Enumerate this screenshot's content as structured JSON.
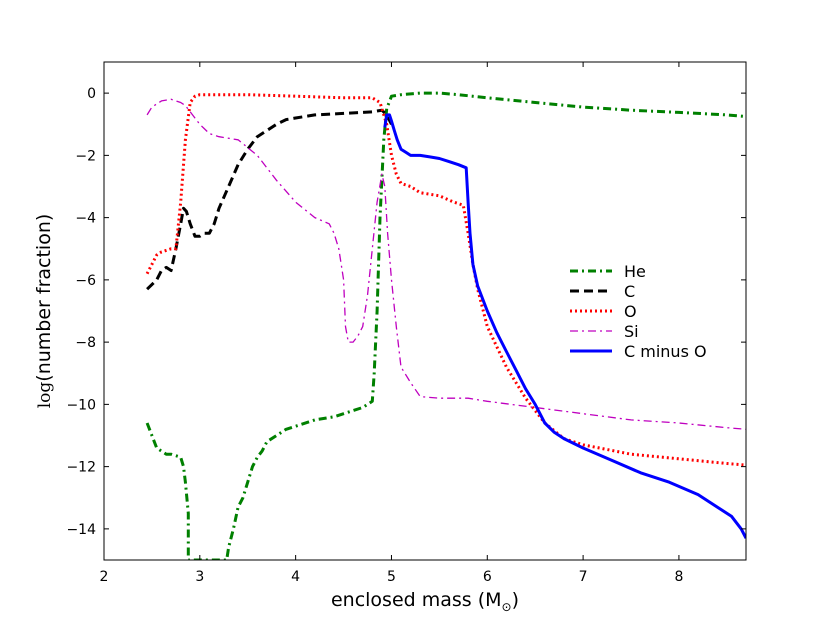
{
  "chart_data": {
    "type": "line",
    "title": "",
    "xlabel": "enclosed mass (M",
    "xlabel_sub": "⊙",
    "xlabel_close": ")",
    "ylabel_log": "log",
    "ylabel_rest": "(number fraction)",
    "xlim": [
      2,
      8.7
    ],
    "ylim": [
      -15,
      1
    ],
    "xticks": [
      2,
      3,
      4,
      5,
      6,
      7,
      8
    ],
    "xtick_labels": [
      "2",
      "3",
      "4",
      "5",
      "6",
      "7",
      "8"
    ],
    "yticks": [
      0,
      -2,
      -4,
      -6,
      -8,
      -10,
      -12,
      -14
    ],
    "ytick_labels": [
      "0",
      "−2",
      "−4",
      "−6",
      "−8",
      "−10",
      "−12",
      "−14"
    ],
    "grid": false,
    "legend_position": "right",
    "series": [
      {
        "name": "He",
        "color": "#008000",
        "style": "dashdot",
        "x": [
          2.45,
          2.5,
          2.55,
          2.6,
          2.65,
          2.7,
          2.75,
          2.8,
          2.83,
          2.85,
          2.88,
          2.88,
          3.28,
          3.3,
          3.35,
          3.4,
          3.45,
          3.5,
          3.55,
          3.6,
          3.65,
          3.7,
          3.8,
          3.9,
          4.0,
          4.2,
          4.4,
          4.6,
          4.7,
          4.75,
          4.8,
          4.82,
          4.85,
          4.88,
          4.92,
          4.95,
          5.0,
          5.1,
          5.3,
          5.5,
          5.7,
          6.0,
          6.5,
          7.0,
          7.5,
          8.0,
          8.5,
          8.7
        ],
        "y": [
          -10.6,
          -11.0,
          -11.4,
          -11.5,
          -11.6,
          -11.6,
          -11.65,
          -11.7,
          -12.0,
          -12.5,
          -13.5,
          -15.0,
          -15.0,
          -14.6,
          -14.0,
          -13.3,
          -13.0,
          -12.5,
          -12.0,
          -11.7,
          -11.5,
          -11.2,
          -11.0,
          -10.8,
          -10.7,
          -10.5,
          -10.4,
          -10.2,
          -10.1,
          -10.0,
          -9.9,
          -9.0,
          -7.0,
          -4.0,
          -1.5,
          -0.5,
          -0.1,
          -0.05,
          0.0,
          0.0,
          -0.05,
          -0.15,
          -0.3,
          -0.45,
          -0.55,
          -0.62,
          -0.7,
          -0.75
        ]
      },
      {
        "name": "C",
        "color": "#000000",
        "style": "dashed",
        "x": [
          2.45,
          2.55,
          2.6,
          2.65,
          2.7,
          2.75,
          2.8,
          2.83,
          2.86,
          2.9,
          2.95,
          3.0,
          3.05,
          3.1,
          3.15,
          3.2,
          3.3,
          3.4,
          3.5,
          3.6,
          3.7,
          3.8,
          3.9,
          4.0,
          4.2,
          4.5,
          4.8,
          4.9,
          4.95,
          5.0
        ],
        "y": [
          -6.3,
          -6.0,
          -5.7,
          -5.6,
          -5.7,
          -5.0,
          -4.2,
          -3.7,
          -3.8,
          -4.2,
          -4.6,
          -4.6,
          -4.5,
          -4.5,
          -4.2,
          -3.7,
          -3.0,
          -2.3,
          -1.8,
          -1.4,
          -1.2,
          -1.0,
          -0.85,
          -0.8,
          -0.7,
          -0.65,
          -0.6,
          -0.55,
          -0.7,
          -1.0
        ]
      },
      {
        "name": "O",
        "color": "#ff0000",
        "style": "dotted",
        "x": [
          2.45,
          2.55,
          2.6,
          2.7,
          2.75,
          2.8,
          2.85,
          2.9,
          2.95,
          3.0,
          3.1,
          3.2,
          3.5,
          4.0,
          4.5,
          4.8,
          4.88,
          4.95,
          5.0,
          5.05,
          5.1,
          5.2,
          5.3,
          5.5,
          5.65,
          5.75,
          5.8,
          5.85,
          5.9,
          6.0,
          6.2,
          6.4,
          6.6,
          6.8,
          7.0,
          7.5,
          8.0,
          8.5,
          8.7
        ],
        "y": [
          -5.8,
          -5.2,
          -5.1,
          -5.0,
          -5.0,
          -3.5,
          -1.5,
          -0.3,
          -0.1,
          -0.05,
          -0.05,
          -0.05,
          -0.05,
          -0.1,
          -0.15,
          -0.15,
          -0.3,
          -1.0,
          -2.0,
          -2.6,
          -2.9,
          -3.0,
          -3.2,
          -3.3,
          -3.5,
          -3.6,
          -4.5,
          -5.5,
          -6.3,
          -7.5,
          -8.8,
          -9.8,
          -10.6,
          -11.1,
          -11.3,
          -11.6,
          -11.75,
          -11.9,
          -11.95
        ]
      },
      {
        "name": "Si",
        "color": "#bf00bf",
        "style": "dashdot",
        "x": [
          2.45,
          2.5,
          2.55,
          2.6,
          2.7,
          2.75,
          2.8,
          2.85,
          2.9,
          3.0,
          3.1,
          3.2,
          3.4,
          3.6,
          3.8,
          4.0,
          4.2,
          4.35,
          4.4,
          4.45,
          4.5,
          4.52,
          4.55,
          4.6,
          4.65,
          4.7,
          4.75,
          4.8,
          4.85,
          4.9,
          4.93,
          4.96,
          5.0,
          5.05,
          5.1,
          5.2,
          5.3,
          5.5,
          5.8,
          6.0,
          6.5,
          7.0,
          7.5,
          8.0,
          8.5,
          8.7
        ],
        "y": [
          -0.7,
          -0.45,
          -0.35,
          -0.25,
          -0.2,
          -0.25,
          -0.3,
          -0.4,
          -0.6,
          -1.0,
          -1.3,
          -1.4,
          -1.5,
          -2.0,
          -2.8,
          -3.5,
          -4.0,
          -4.2,
          -4.5,
          -5.0,
          -6.0,
          -7.5,
          -8.0,
          -8.0,
          -7.8,
          -7.5,
          -6.5,
          -5.0,
          -3.5,
          -2.6,
          -3.0,
          -4.5,
          -6.0,
          -7.5,
          -8.8,
          -9.3,
          -9.75,
          -9.8,
          -9.8,
          -9.9,
          -10.1,
          -10.3,
          -10.5,
          -10.6,
          -10.75,
          -10.8
        ]
      },
      {
        "name": "C minus O",
        "color": "#0000ff",
        "style": "solid",
        "x": [
          4.93,
          4.95,
          4.98,
          5.0,
          5.03,
          5.06,
          5.1,
          5.15,
          5.2,
          5.3,
          5.4,
          5.5,
          5.6,
          5.7,
          5.78,
          5.8,
          5.82,
          5.85,
          5.9,
          6.0,
          6.1,
          6.2,
          6.3,
          6.4,
          6.5,
          6.6,
          6.7,
          6.8,
          7.0,
          7.3,
          7.6,
          7.9,
          8.2,
          8.4,
          8.55,
          8.65,
          8.7
        ],
        "y": [
          -1.1,
          -0.7,
          -0.7,
          -0.9,
          -1.2,
          -1.5,
          -1.8,
          -1.9,
          -2.0,
          -2.0,
          -2.05,
          -2.1,
          -2.2,
          -2.3,
          -2.4,
          -3.5,
          -4.5,
          -5.5,
          -6.2,
          -7.0,
          -7.7,
          -8.3,
          -8.9,
          -9.5,
          -10.0,
          -10.6,
          -10.9,
          -11.1,
          -11.4,
          -11.8,
          -12.2,
          -12.5,
          -12.9,
          -13.3,
          -13.6,
          -14.0,
          -14.3
        ]
      }
    ]
  }
}
